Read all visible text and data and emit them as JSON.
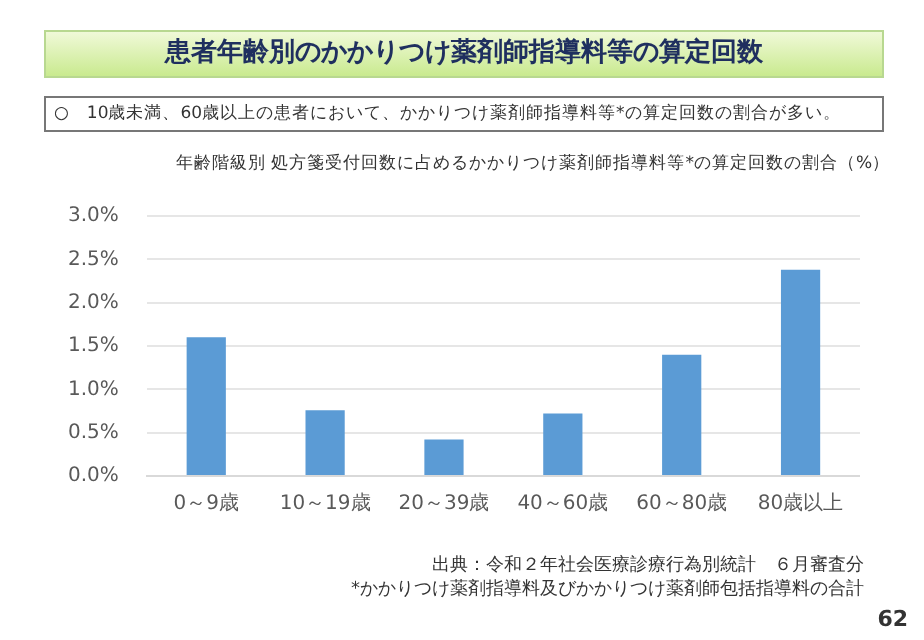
{
  "chart_data": {
    "type": "bar",
    "title": "患者年齢別のかかりつけ薬剤師指導料等の算定回数",
    "subtitle": "○　10歳未満、60歳以上の患者において、かかりつけ薬剤師指導料等*の算定回数の割合が多い。",
    "annotations": [
      "年齢階級別 処方箋受付回数に占めるかかりつけ薬剤師指導料等*の算定回数の割合（%）",
      "出典：令和２年社会医療診療行為別統計　６月審査分",
      "*かかりつけ薬剤指導料及びかかりつけ薬剤師包括指導料の合計",
      "62"
    ],
    "categories": [
      "0～9歳",
      "10～19歳",
      "20～39歳",
      "40～60歳",
      "60～80歳",
      "80歳以上"
    ],
    "values": [
      1.6,
      0.76,
      0.42,
      0.72,
      1.4,
      2.38
    ],
    "color": "#5b9bd5",
    "ylim": [
      0,
      3
    ],
    "yticks": [
      {
        "value": 0,
        "label": "0.0%"
      },
      {
        "value": 0.5,
        "label": "0.5%"
      },
      {
        "value": 1,
        "label": "1.0%"
      },
      {
        "value": 1.5,
        "label": "1.5%"
      },
      {
        "value": 2,
        "label": "2.0%"
      },
      {
        "value": 2.5,
        "label": "2.5%"
      },
      {
        "value": 3,
        "label": "3.0%"
      }
    ],
    "grid": "y",
    "legend": false
  }
}
